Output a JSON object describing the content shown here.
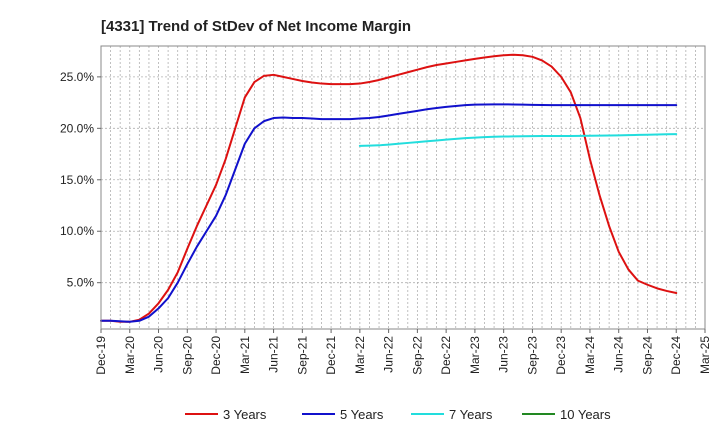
{
  "chart_data": {
    "type": "line",
    "title": "[4331]  Trend of StDev of Net Income Margin",
    "xlabel": "",
    "ylabel": "",
    "x_ticks": [
      "Dec-19",
      "Mar-20",
      "Jun-20",
      "Sep-20",
      "Dec-20",
      "Mar-21",
      "Jun-21",
      "Sep-21",
      "Dec-21",
      "Mar-22",
      "Jun-22",
      "Sep-22",
      "Dec-22",
      "Mar-23",
      "Jun-23",
      "Sep-23",
      "Dec-23",
      "Mar-24",
      "Jun-24",
      "Sep-24",
      "Dec-24",
      "Mar-25"
    ],
    "y_ticks": [
      "5.0%",
      "10.0%",
      "15.0%",
      "20.0%",
      "25.0%"
    ],
    "y_tick_values": [
      5,
      10,
      15,
      20,
      25
    ],
    "ylim": [
      0.5,
      28
    ],
    "grid": true,
    "legend_position": "bottom",
    "series": [
      {
        "name": "3 Years",
        "color": "#dd1111",
        "x": [
          "Dec-19",
          "Jan-20",
          "Feb-20",
          "Mar-20",
          "Apr-20",
          "May-20",
          "Jun-20",
          "Jul-20",
          "Aug-20",
          "Sep-20",
          "Oct-20",
          "Nov-20",
          "Dec-20",
          "Jan-21",
          "Feb-21",
          "Mar-21",
          "Apr-21",
          "May-21",
          "Jun-21",
          "Jul-21",
          "Aug-21",
          "Sep-21",
          "Oct-21",
          "Nov-21",
          "Dec-21",
          "Jan-22",
          "Feb-22",
          "Mar-22",
          "Apr-22",
          "May-22",
          "Jun-22",
          "Jul-22",
          "Aug-22",
          "Sep-22",
          "Oct-22",
          "Nov-22",
          "Dec-22",
          "Jan-23",
          "Feb-23",
          "Mar-23",
          "Apr-23",
          "May-23",
          "Jun-23",
          "Jul-23",
          "Aug-23",
          "Sep-23",
          "Oct-23",
          "Nov-23",
          "Dec-23",
          "Jan-24",
          "Feb-24",
          "Mar-24",
          "Apr-24",
          "May-24",
          "Jun-24",
          "Jul-24",
          "Aug-24",
          "Sep-24",
          "Oct-24",
          "Nov-24",
          "Dec-24"
        ],
        "values": [
          1.3,
          1.3,
          1.2,
          1.2,
          1.4,
          2.0,
          3.0,
          4.3,
          6.0,
          8.3,
          10.5,
          12.5,
          14.5,
          17.0,
          20.0,
          23.0,
          24.5,
          25.1,
          25.2,
          25.0,
          24.8,
          24.6,
          24.45,
          24.35,
          24.3,
          24.3,
          24.3,
          24.35,
          24.5,
          24.7,
          24.95,
          25.2,
          25.45,
          25.7,
          25.95,
          26.15,
          26.3,
          26.45,
          26.6,
          26.75,
          26.88,
          27.0,
          27.1,
          27.15,
          27.1,
          26.95,
          26.6,
          26.0,
          25.0,
          23.5,
          21.0,
          17.0,
          13.5,
          10.5,
          8.0,
          6.3,
          5.2,
          4.8,
          4.45,
          4.2,
          4.0
        ]
      },
      {
        "name": "5 Years",
        "color": "#1111cc",
        "x": [
          "Dec-19",
          "Jan-20",
          "Feb-20",
          "Mar-20",
          "Apr-20",
          "May-20",
          "Jun-20",
          "Jul-20",
          "Aug-20",
          "Sep-20",
          "Oct-20",
          "Nov-20",
          "Dec-20",
          "Jan-21",
          "Feb-21",
          "Mar-21",
          "Apr-21",
          "May-21",
          "Jun-21",
          "Jul-21",
          "Aug-21",
          "Sep-21",
          "Oct-21",
          "Nov-21",
          "Dec-21",
          "Jan-22",
          "Feb-22",
          "Mar-22",
          "Apr-22",
          "May-22",
          "Jun-22",
          "Jul-22",
          "Aug-22",
          "Sep-22",
          "Oct-22",
          "Nov-22",
          "Dec-22",
          "Jan-23",
          "Feb-23",
          "Mar-23",
          "Apr-23",
          "May-23",
          "Jun-23",
          "Jul-23",
          "Aug-23",
          "Sep-23",
          "Oct-23",
          "Nov-23",
          "Dec-23",
          "Jan-24",
          "Feb-24",
          "Mar-24",
          "Apr-24",
          "May-24",
          "Jun-24",
          "Jul-24",
          "Aug-24",
          "Sep-24",
          "Oct-24",
          "Nov-24",
          "Dec-24"
        ],
        "values": [
          1.3,
          1.3,
          1.25,
          1.2,
          1.3,
          1.7,
          2.5,
          3.5,
          5.0,
          6.8,
          8.5,
          10.0,
          11.5,
          13.5,
          16.0,
          18.5,
          20.0,
          20.7,
          21.0,
          21.05,
          21.0,
          21.0,
          20.95,
          20.9,
          20.9,
          20.9,
          20.9,
          20.95,
          21.0,
          21.1,
          21.25,
          21.4,
          21.55,
          21.7,
          21.85,
          21.97,
          22.08,
          22.17,
          22.25,
          22.3,
          22.32,
          22.33,
          22.33,
          22.32,
          22.3,
          22.28,
          22.27,
          22.26,
          22.25,
          22.25,
          22.25,
          22.25,
          22.25,
          22.25,
          22.25,
          22.25,
          22.25,
          22.25,
          22.25,
          22.25,
          22.25
        ]
      },
      {
        "name": "7 Years",
        "color": "#22dddd",
        "x": [
          "Mar-22",
          "Apr-22",
          "May-22",
          "Jun-22",
          "Jul-22",
          "Aug-22",
          "Sep-22",
          "Oct-22",
          "Nov-22",
          "Dec-22",
          "Jan-23",
          "Feb-23",
          "Mar-23",
          "Apr-23",
          "May-23",
          "Jun-23",
          "Jul-23",
          "Aug-23",
          "Sep-23",
          "Oct-23",
          "Nov-23",
          "Dec-23",
          "Jan-24",
          "Feb-24",
          "Mar-24",
          "Apr-24",
          "May-24",
          "Jun-24",
          "Jul-24",
          "Aug-24",
          "Sep-24",
          "Oct-24",
          "Nov-24",
          "Dec-24"
        ],
        "values": [
          18.3,
          18.32,
          18.35,
          18.42,
          18.5,
          18.58,
          18.66,
          18.74,
          18.82,
          18.9,
          18.98,
          19.05,
          19.1,
          19.15,
          19.18,
          19.2,
          19.22,
          19.23,
          19.24,
          19.25,
          19.25,
          19.25,
          19.26,
          19.27,
          19.28,
          19.29,
          19.3,
          19.32,
          19.34,
          19.36,
          19.38,
          19.4,
          19.42,
          19.44
        ]
      },
      {
        "name": "10 Years",
        "color": "#228822",
        "x": [],
        "values": []
      }
    ]
  }
}
